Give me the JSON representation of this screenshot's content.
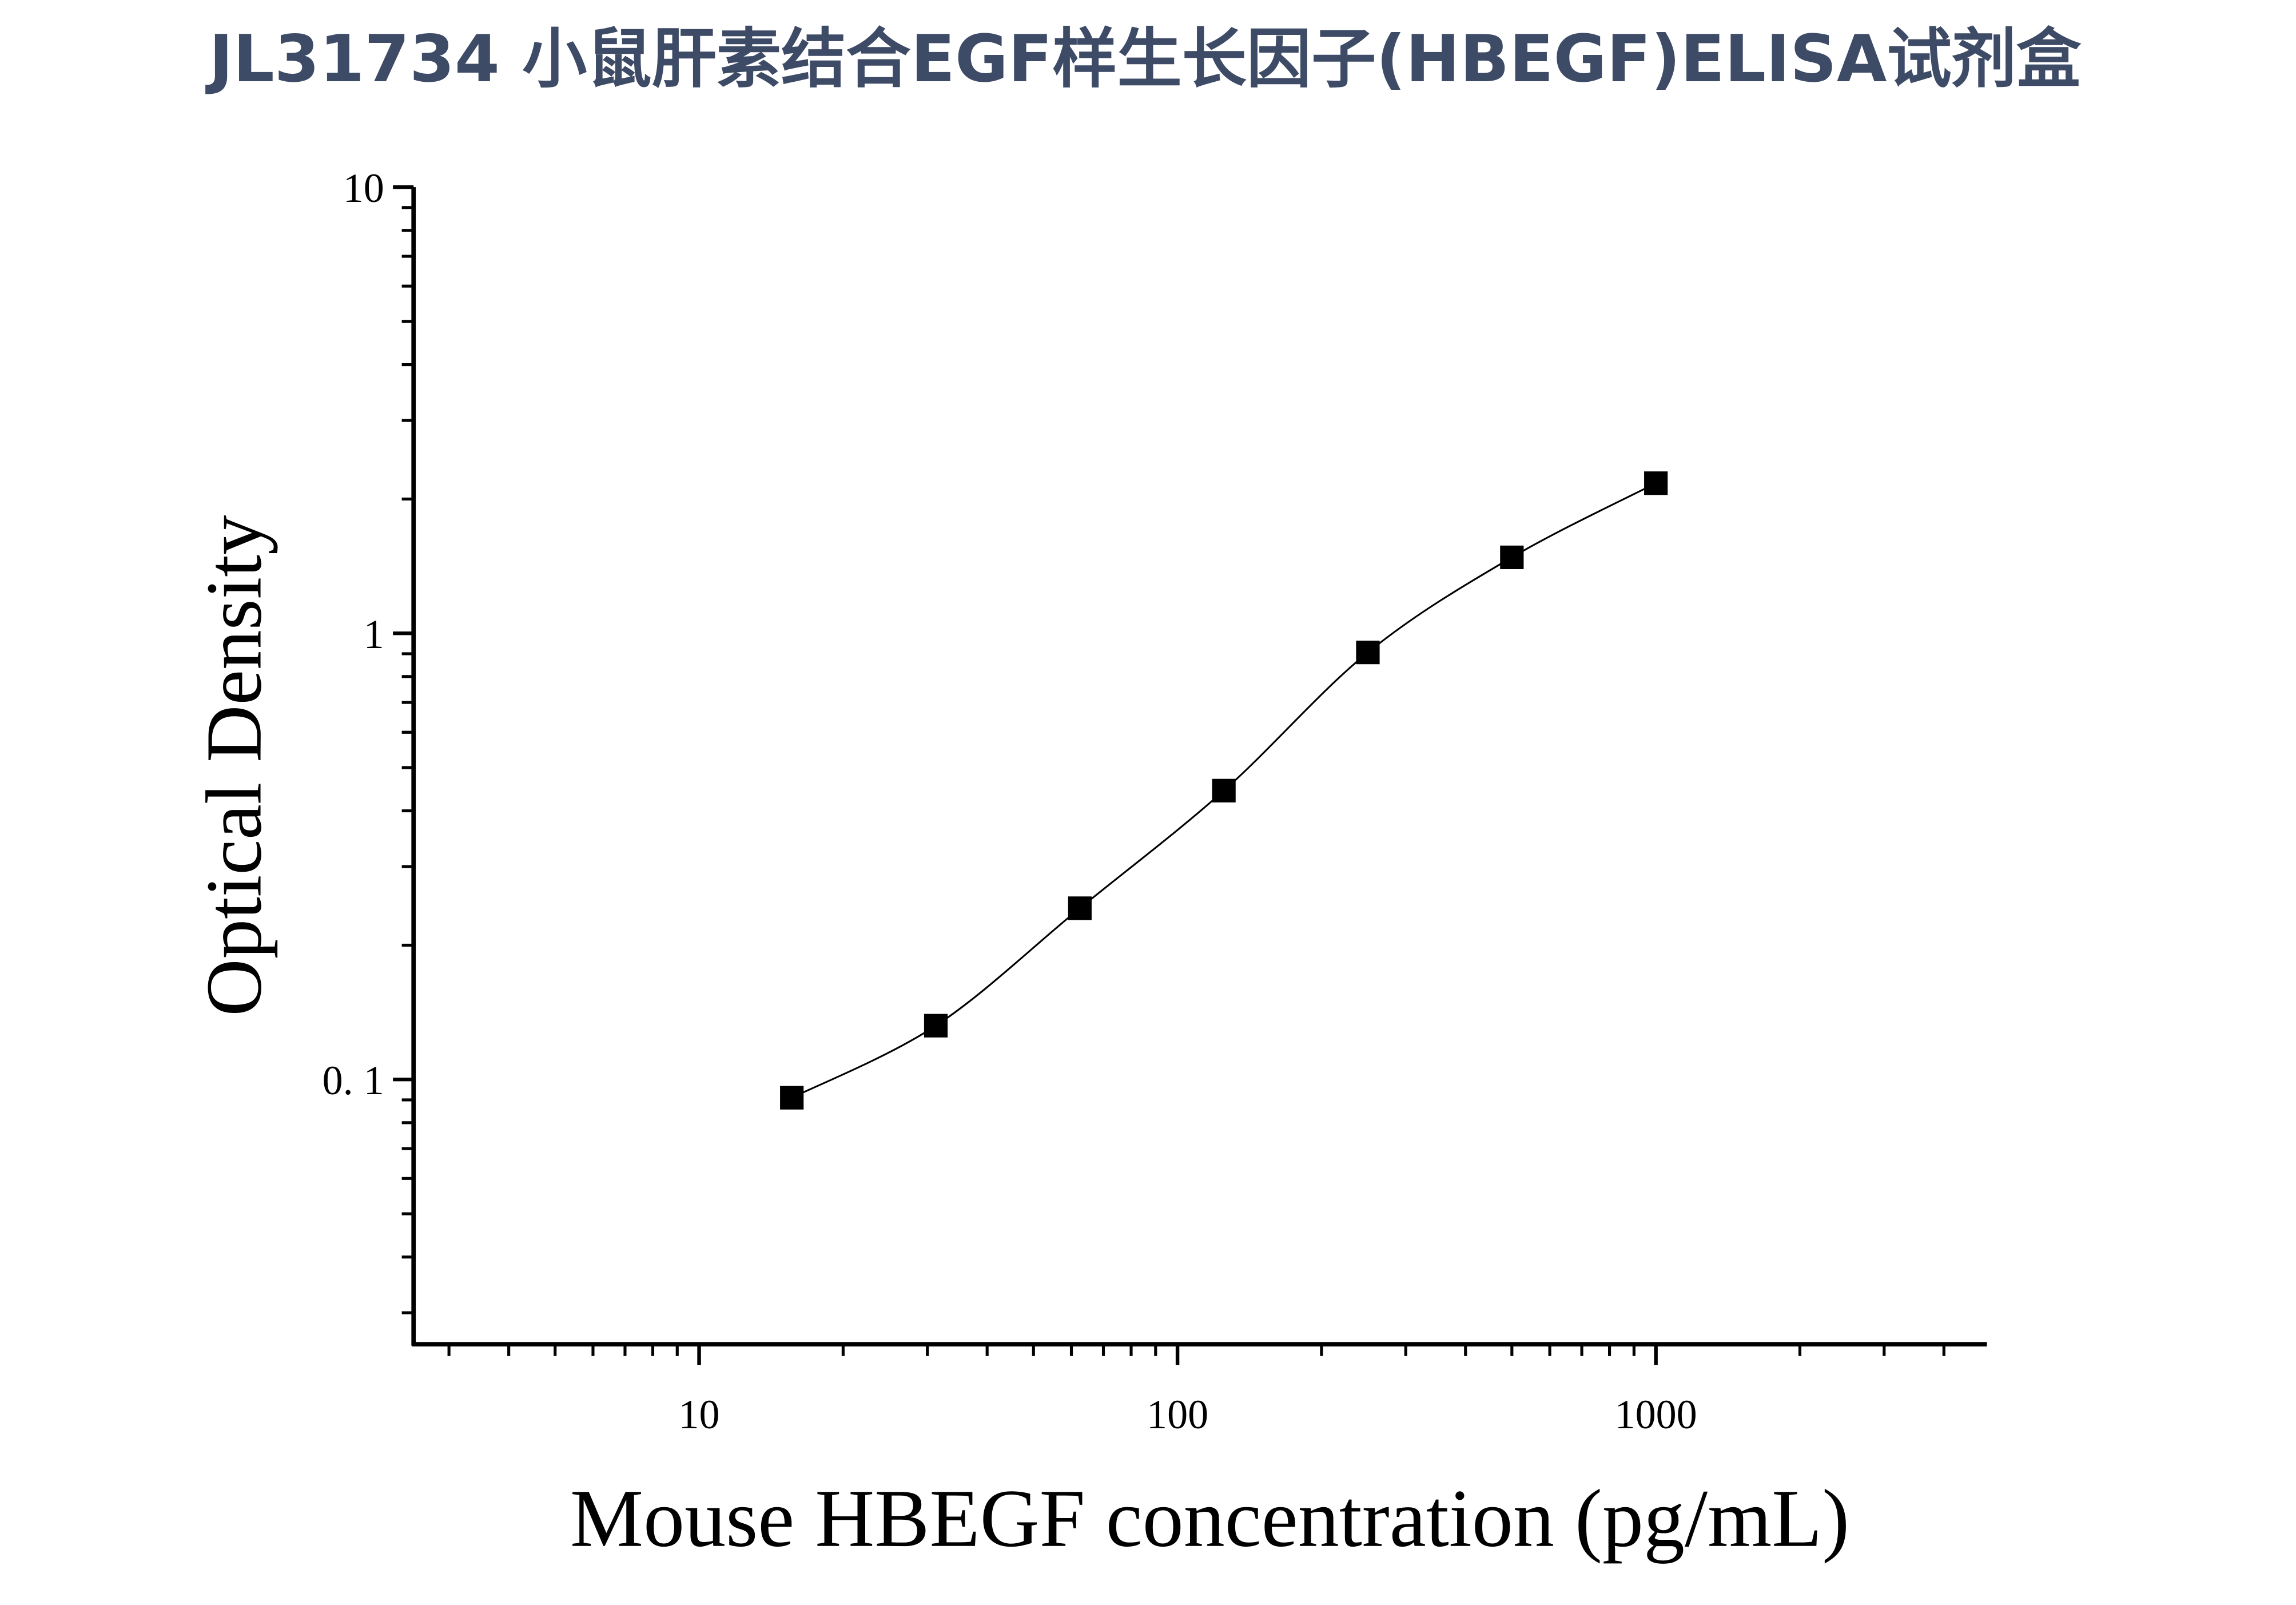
{
  "chart_data": {
    "type": "scatter",
    "title": "JL31734 小鼠肝素结合EGF样生长因子(HBEGF)ELISA试剂盒",
    "xlabel": "Mouse HBEGF concentration (pg/mL)",
    "ylabel": "Optical Density",
    "x": [
      15.625,
      31.25,
      62.5,
      125,
      250,
      500,
      1000
    ],
    "series": [
      {
        "color": "#000000",
        "values": [
          0.091,
          0.132,
          0.242,
          0.444,
          0.906,
          1.48,
          2.17
        ]
      }
    ],
    "xscale": "log",
    "yscale": "log",
    "xlim": [
      2.53,
      4920
    ],
    "ylim": [
      0.0255,
      10
    ],
    "xticks": [
      10,
      100,
      1000
    ],
    "yticks": [
      10,
      1,
      {
        "value": 0.1,
        "label": "0. 1"
      }
    ],
    "grid": false
  }
}
